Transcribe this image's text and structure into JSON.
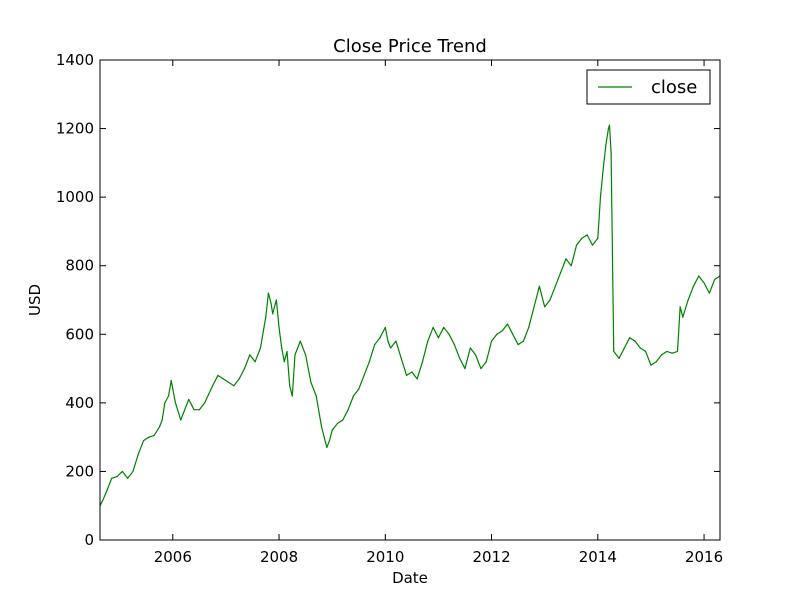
{
  "chart_data": {
    "type": "line",
    "title": "Close Price Trend",
    "xlabel": "Date",
    "ylabel": "USD",
    "xlim": [
      2004.63,
      2016.3
    ],
    "ylim": [
      0,
      1400
    ],
    "x_ticks": [
      2006,
      2008,
      2010,
      2012,
      2014,
      2016
    ],
    "x_tick_labels": [
      "2006",
      "2008",
      "2010",
      "2012",
      "2014",
      "2016"
    ],
    "y_ticks": [
      0,
      200,
      400,
      600,
      800,
      1000,
      1200,
      1400
    ],
    "y_tick_labels": [
      "0",
      "200",
      "400",
      "600",
      "800",
      "1000",
      "1200",
      "1400"
    ],
    "grid": false,
    "legend": {
      "position": "top-right",
      "entries": [
        "close"
      ]
    },
    "series": [
      {
        "name": "close",
        "color": "#008000",
        "x": [
          2004.63,
          2004.68,
          2004.75,
          2004.85,
          2004.95,
          2005.05,
          2005.15,
          2005.25,
          2005.35,
          2005.45,
          2005.55,
          2005.65,
          2005.75,
          2005.8,
          2005.85,
          2005.92,
          2005.97,
          2006.05,
          2006.15,
          2006.2,
          2006.3,
          2006.4,
          2006.5,
          2006.6,
          2006.75,
          2006.85,
          2006.95,
          2007.05,
          2007.15,
          2007.25,
          2007.35,
          2007.45,
          2007.55,
          2007.65,
          2007.75,
          2007.8,
          2007.85,
          2007.88,
          2007.95,
          2008.0,
          2008.05,
          2008.1,
          2008.15,
          2008.2,
          2008.25,
          2008.3,
          2008.4,
          2008.5,
          2008.6,
          2008.7,
          2008.8,
          2008.85,
          2008.9,
          2008.95,
          2009.0,
          2009.1,
          2009.2,
          2009.3,
          2009.4,
          2009.5,
          2009.6,
          2009.7,
          2009.8,
          2009.9,
          2010.0,
          2010.05,
          2010.1,
          2010.2,
          2010.3,
          2010.4,
          2010.5,
          2010.6,
          2010.7,
          2010.8,
          2010.85,
          2010.9,
          2011.0,
          2011.1,
          2011.2,
          2011.3,
          2011.4,
          2011.5,
          2011.6,
          2011.7,
          2011.8,
          2011.9,
          2012.0,
          2012.1,
          2012.2,
          2012.3,
          2012.4,
          2012.5,
          2012.6,
          2012.7,
          2012.8,
          2012.9,
          2013.0,
          2013.1,
          2013.2,
          2013.3,
          2013.4,
          2013.5,
          2013.6,
          2013.7,
          2013.8,
          2013.9,
          2014.0,
          2014.05,
          2014.1,
          2014.15,
          2014.2,
          2014.22,
          2014.25,
          2014.3,
          2014.4,
          2014.5,
          2014.6,
          2014.7,
          2014.8,
          2014.9,
          2015.0,
          2015.1,
          2015.2,
          2015.3,
          2015.4,
          2015.5,
          2015.55,
          2015.6,
          2015.7,
          2015.8,
          2015.9,
          2016.0,
          2016.1,
          2016.2,
          2016.3
        ],
        "values": [
          100,
          115,
          140,
          180,
          185,
          200,
          180,
          200,
          250,
          290,
          300,
          305,
          330,
          350,
          400,
          420,
          465,
          400,
          350,
          370,
          410,
          380,
          380,
          400,
          450,
          480,
          470,
          460,
          450,
          470,
          500,
          540,
          520,
          560,
          650,
          720,
          690,
          660,
          700,
          620,
          560,
          520,
          550,
          450,
          420,
          540,
          580,
          540,
          460,
          420,
          330,
          300,
          270,
          290,
          320,
          340,
          350,
          380,
          420,
          440,
          480,
          520,
          570,
          590,
          620,
          580,
          560,
          580,
          530,
          480,
          490,
          470,
          520,
          580,
          600,
          620,
          590,
          620,
          600,
          570,
          530,
          500,
          560,
          540,
          500,
          520,
          580,
          600,
          610,
          630,
          600,
          570,
          580,
          620,
          680,
          740,
          680,
          700,
          740,
          780,
          820,
          800,
          860,
          880,
          890,
          860,
          880,
          1000,
          1080,
          1150,
          1200,
          1210,
          1130,
          550,
          530,
          560,
          590,
          580,
          560,
          550,
          510,
          520,
          540,
          550,
          545,
          550,
          680,
          650,
          700,
          740,
          770,
          750,
          720,
          760,
          770
        ]
      }
    ]
  }
}
